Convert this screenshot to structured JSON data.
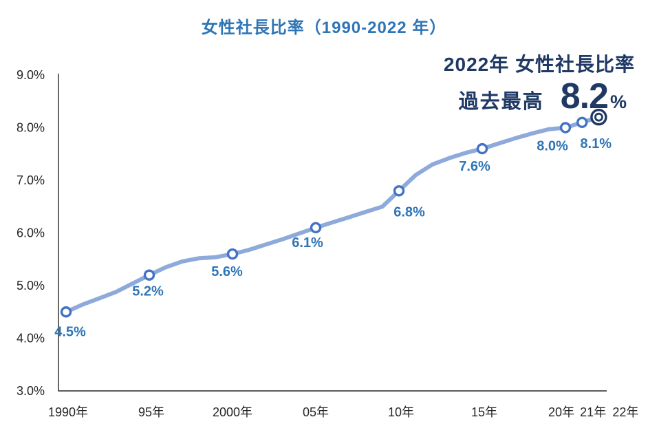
{
  "title": "女性社長比率（1990-2022 年）",
  "annotation": {
    "line1": "2022年 女性社長比率",
    "line2_label": "過去最高",
    "line2_value": "8.2",
    "line2_unit": "%"
  },
  "colors": {
    "title_blue": "#2E75B6",
    "data_label_blue": "#2E75B6",
    "navy": "#1F3864",
    "line": "#8EAADB",
    "marker_ring": "#4472C4",
    "axis": "#262626",
    "background": "#FFFFFF"
  },
  "chart_data": {
    "type": "line",
    "title": "女性社長比率（1990-2022 年）",
    "ylim": [
      3.0,
      9.0
    ],
    "grid": false,
    "legend": false,
    "y_ticks": [
      {
        "value": 9.0,
        "label": "9.0%"
      },
      {
        "value": 8.0,
        "label": "8.0%"
      },
      {
        "value": 7.0,
        "label": "7.0%"
      },
      {
        "value": 6.0,
        "label": "6.0%"
      },
      {
        "value": 5.0,
        "label": "5.0%"
      },
      {
        "value": 4.0,
        "label": "4.0%"
      },
      {
        "value": 3.0,
        "label": "3.0%"
      }
    ],
    "x_ticks": [
      {
        "year": 1990,
        "label": "1990年"
      },
      {
        "year": 1995,
        "label": "95年"
      },
      {
        "year": 2000,
        "label": "2000年"
      },
      {
        "year": 2005,
        "label": "05年"
      },
      {
        "year": 2010,
        "label": "10年"
      },
      {
        "year": 2015,
        "label": "15年"
      },
      {
        "year": 2020,
        "label": "20年"
      },
      {
        "year": 2021,
        "label": "21年"
      },
      {
        "year": 2022,
        "label": "22年"
      }
    ],
    "labeled_points": [
      {
        "year": 1990,
        "value": 4.5,
        "label": "4.5%"
      },
      {
        "year": 1995,
        "value": 5.2,
        "label": "5.2%"
      },
      {
        "year": 2000,
        "value": 5.6,
        "label": "5.6%"
      },
      {
        "year": 2005,
        "value": 6.1,
        "label": "6.1%"
      },
      {
        "year": 2010,
        "value": 6.8,
        "label": "6.8%"
      },
      {
        "year": 2015,
        "value": 7.6,
        "label": "7.6%"
      },
      {
        "year": 2020,
        "value": 8.0,
        "label": "8.0%"
      },
      {
        "year": 2021,
        "value": 8.1,
        "label": "8.1%"
      },
      {
        "year": 2022,
        "value": 8.2,
        "label": ""
      }
    ],
    "highlight_year": 2022,
    "yearly_values_estimated": {
      "start_year": 1990,
      "values": [
        4.5,
        4.64,
        4.76,
        4.88,
        5.04,
        5.2,
        5.35,
        5.46,
        5.52,
        5.54,
        5.6,
        5.68,
        5.78,
        5.88,
        5.99,
        6.1,
        6.2,
        6.3,
        6.4,
        6.5,
        6.8,
        7.1,
        7.3,
        7.42,
        7.52,
        7.6,
        7.7,
        7.8,
        7.89,
        7.97,
        8.0,
        8.1,
        8.2
      ]
    }
  }
}
